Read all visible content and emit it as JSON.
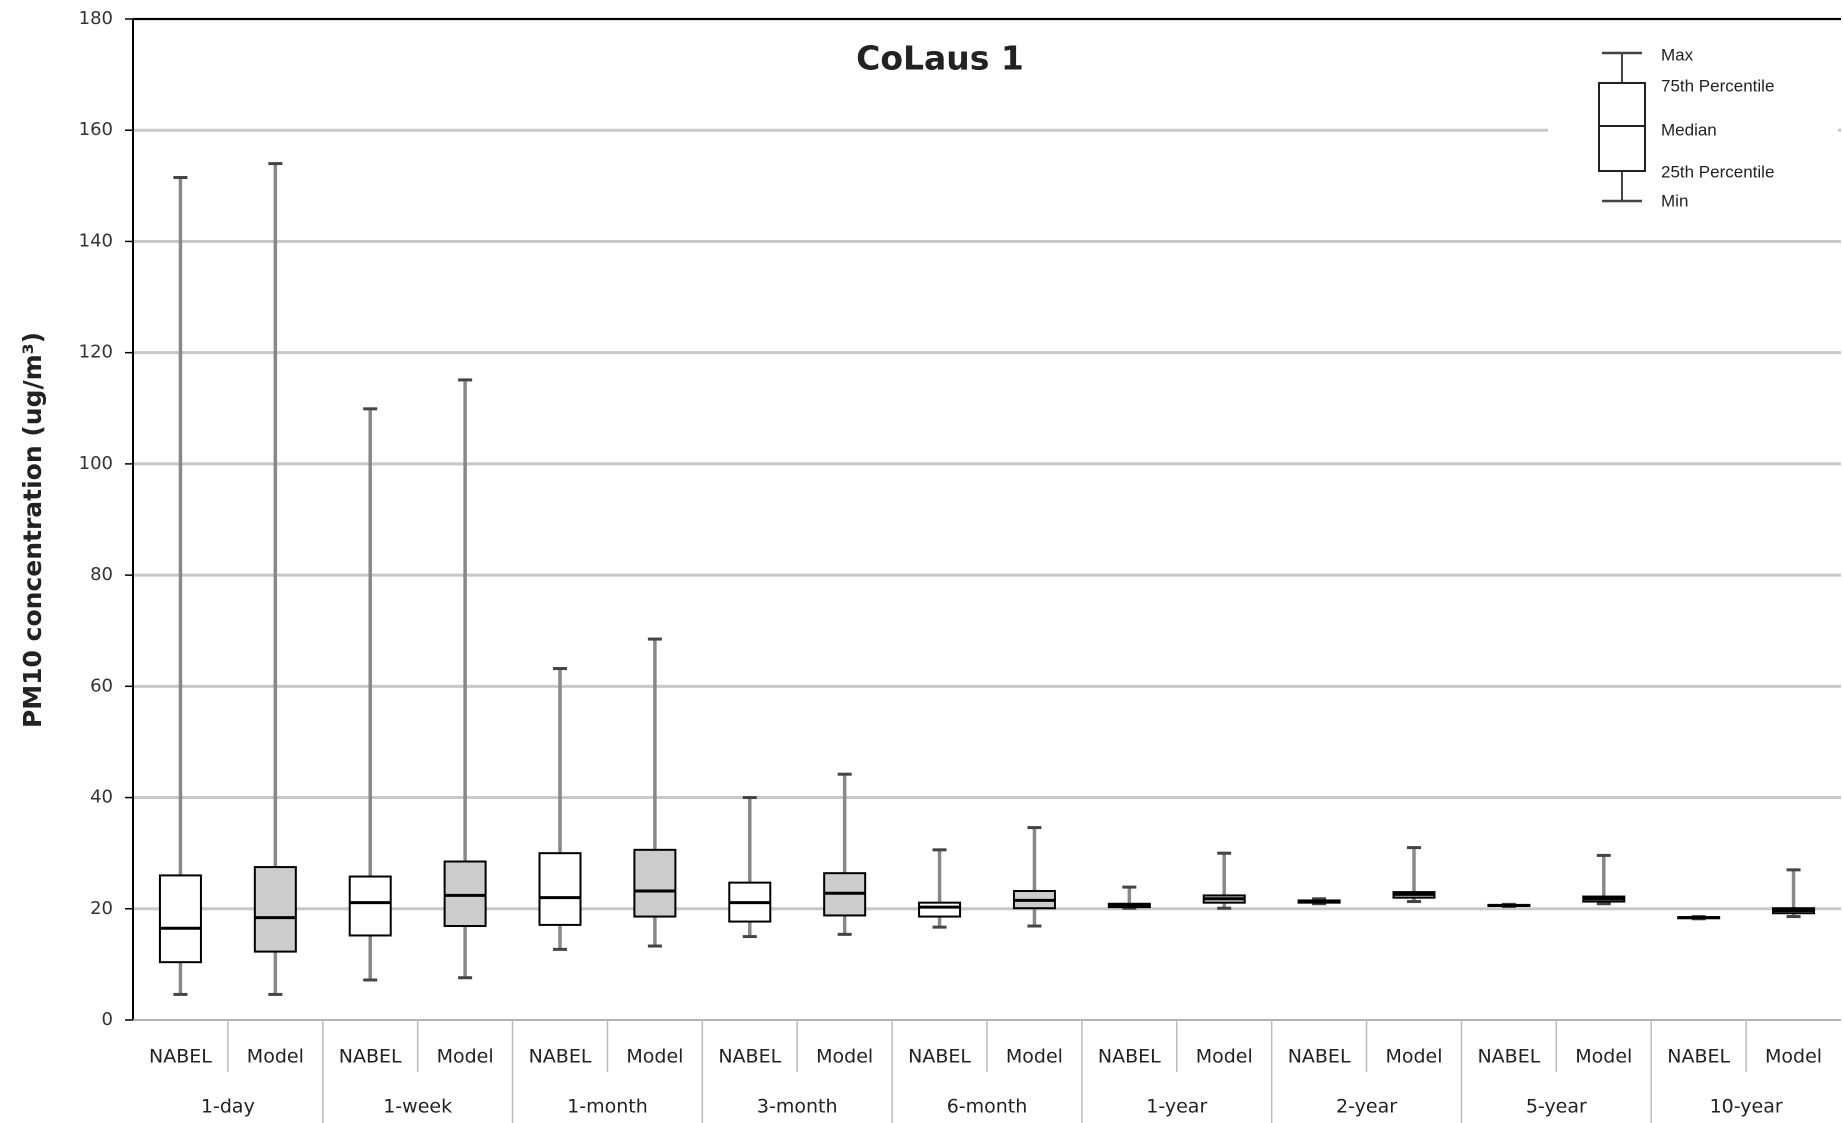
{
  "chart_data": {
    "type": "box",
    "title": "CoLaus 1",
    "y_label": "PM10 concentration (ug/m³)",
    "categories": [
      "1-day",
      "1-week",
      "1-month",
      "3-month",
      "6-month",
      "1-year",
      "2-year",
      "5-year",
      "10-year"
    ],
    "series": [
      {
        "name": "NABEL",
        "color": "#ffffff",
        "values": [
          {
            "min": 4.6,
            "q1": 10.4,
            "median": 16.5,
            "q3": 26,
            "max": 151.5
          },
          {
            "min": 7.2,
            "q1": 15.2,
            "median": 21.1,
            "q3": 25.8,
            "max": 109.9
          },
          {
            "min": 12.7,
            "q1": 17.1,
            "median": 22,
            "q3": 30,
            "max": 63.2
          },
          {
            "min": 15,
            "q1": 17.7,
            "median": 21.1,
            "q3": 24.7,
            "max": 40
          },
          {
            "min": 16.7,
            "q1": 18.6,
            "median": 20.3,
            "q3": 21.1,
            "max": 30.6
          },
          {
            "min": 20.1,
            "q1": 20.3,
            "median": 20.7,
            "q3": 20.9,
            "max": 23.9
          },
          {
            "min": 20.9,
            "q1": 21.1,
            "median": 21.3,
            "q3": 21.5,
            "max": 21.8
          },
          {
            "min": 20.4,
            "q1": 20.5,
            "median": 20.6,
            "q3": 20.7,
            "max": 20.8
          },
          {
            "min": 18.2,
            "q1": 18.3,
            "median": 18.4,
            "q3": 18.5,
            "max": 18.6
          }
        ]
      },
      {
        "name": "Model",
        "color": "#cccccc",
        "values": [
          {
            "min": 4.6,
            "q1": 12.3,
            "median": 18.4,
            "q3": 27.5,
            "max": 154
          },
          {
            "min": 7.6,
            "q1": 16.9,
            "median": 22.4,
            "q3": 28.5,
            "max": 115.1
          },
          {
            "min": 13.3,
            "q1": 18.6,
            "median": 23.2,
            "q3": 30.6,
            "max": 68.5
          },
          {
            "min": 15.4,
            "q1": 18.8,
            "median": 22.8,
            "q3": 26.4,
            "max": 44.2
          },
          {
            "min": 16.9,
            "q1": 20.1,
            "median": 21.5,
            "q3": 23.2,
            "max": 34.6
          },
          {
            "min": 20.1,
            "q1": 21.1,
            "median": 21.8,
            "q3": 22.4,
            "max": 30
          },
          {
            "min": 21.3,
            "q1": 22,
            "median": 22.6,
            "q3": 23,
            "max": 31
          },
          {
            "min": 20.9,
            "q1": 21.3,
            "median": 21.8,
            "q3": 22.2,
            "max": 29.6
          },
          {
            "min": 18.6,
            "q1": 19.2,
            "median": 19.7,
            "q3": 20.1,
            "max": 27
          }
        ]
      }
    ],
    "legend": {
      "max": "Max",
      "q3": "75th Percentile",
      "median": "Median",
      "q1": "25th Percentile",
      "min": "Min"
    },
    "ylim": [
      0,
      180
    ],
    "yticks": [
      0,
      20,
      40,
      60,
      80,
      100,
      120,
      140,
      160,
      180
    ],
    "grid": true
  }
}
